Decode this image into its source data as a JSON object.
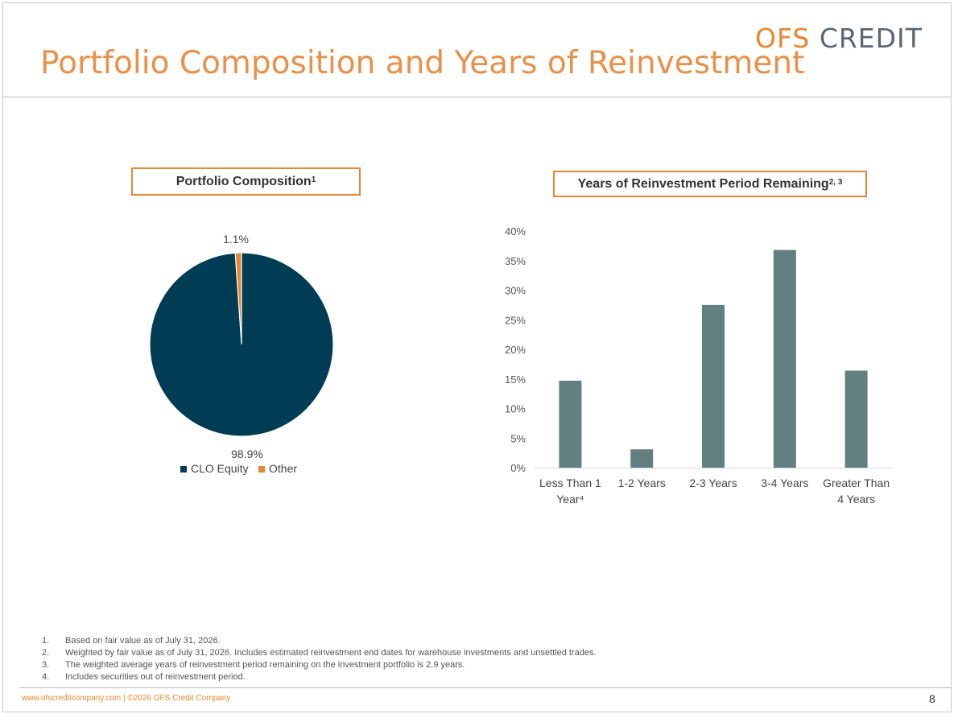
{
  "header": {
    "logo_primary": "OFS",
    "logo_secondary": "CREDIT",
    "title": "Portfolio Composition and Years of Reinvestment"
  },
  "colors": {
    "accent": "#e8872f",
    "clo_equity": "#003d55",
    "other": "#e8872f",
    "bar": "#62807f"
  },
  "left_panel": {
    "heading": "Portfolio Composition",
    "heading_sup": "1"
  },
  "right_panel": {
    "heading": "Years of Reinvestment Period Remaining",
    "heading_sup": "2, 3"
  },
  "chart_data": [
    {
      "type": "pie",
      "categories": [
        "CLO Equity",
        "Other"
      ],
      "values": [
        98.9,
        1.1
      ],
      "data_labels": [
        "98.9%",
        "1.1%"
      ],
      "legend": [
        "CLO Equity",
        "Other"
      ],
      "legend_position": "bottom"
    },
    {
      "type": "bar",
      "categories": [
        "Less Than 1 Year",
        "1-2 Years",
        "2-3 Years",
        "3-4 Years",
        "Greater Than 4 Years"
      ],
      "category_lines": [
        [
          "Less Than 1",
          "Year⁴"
        ],
        [
          "1-2 Years"
        ],
        [
          "2-3 Years"
        ],
        [
          "3-4 Years"
        ],
        [
          "Greater Than",
          "4 Years"
        ]
      ],
      "values": [
        14.7,
        3.1,
        27.5,
        36.8,
        16.4
      ],
      "ylim": [
        0,
        40
      ],
      "yticks": [
        "0%",
        "5%",
        "10%",
        "15%",
        "20%",
        "25%",
        "30%",
        "35%",
        "40%"
      ],
      "grid": false,
      "xlabel": "",
      "ylabel": ""
    }
  ],
  "footnotes": [
    {
      "num": "1.",
      "text": "Based on fair value as of July 31, 2026."
    },
    {
      "num": "2.",
      "text": "Weighted by fair value as of July 31, 2026. Includes estimated reinvestment end dates for warehouse investments and unsettled trades."
    },
    {
      "num": "3.",
      "text": "The weighted average years of reinvestment period remaining on the investment portfolio is 2.9 years."
    },
    {
      "num": "4.",
      "text": "Includes securities out of reinvestment period."
    }
  ],
  "footer": {
    "left_text": "www.ofscreditcompany.com |   ©2026 OFS Credit Company",
    "page_number": "8"
  }
}
